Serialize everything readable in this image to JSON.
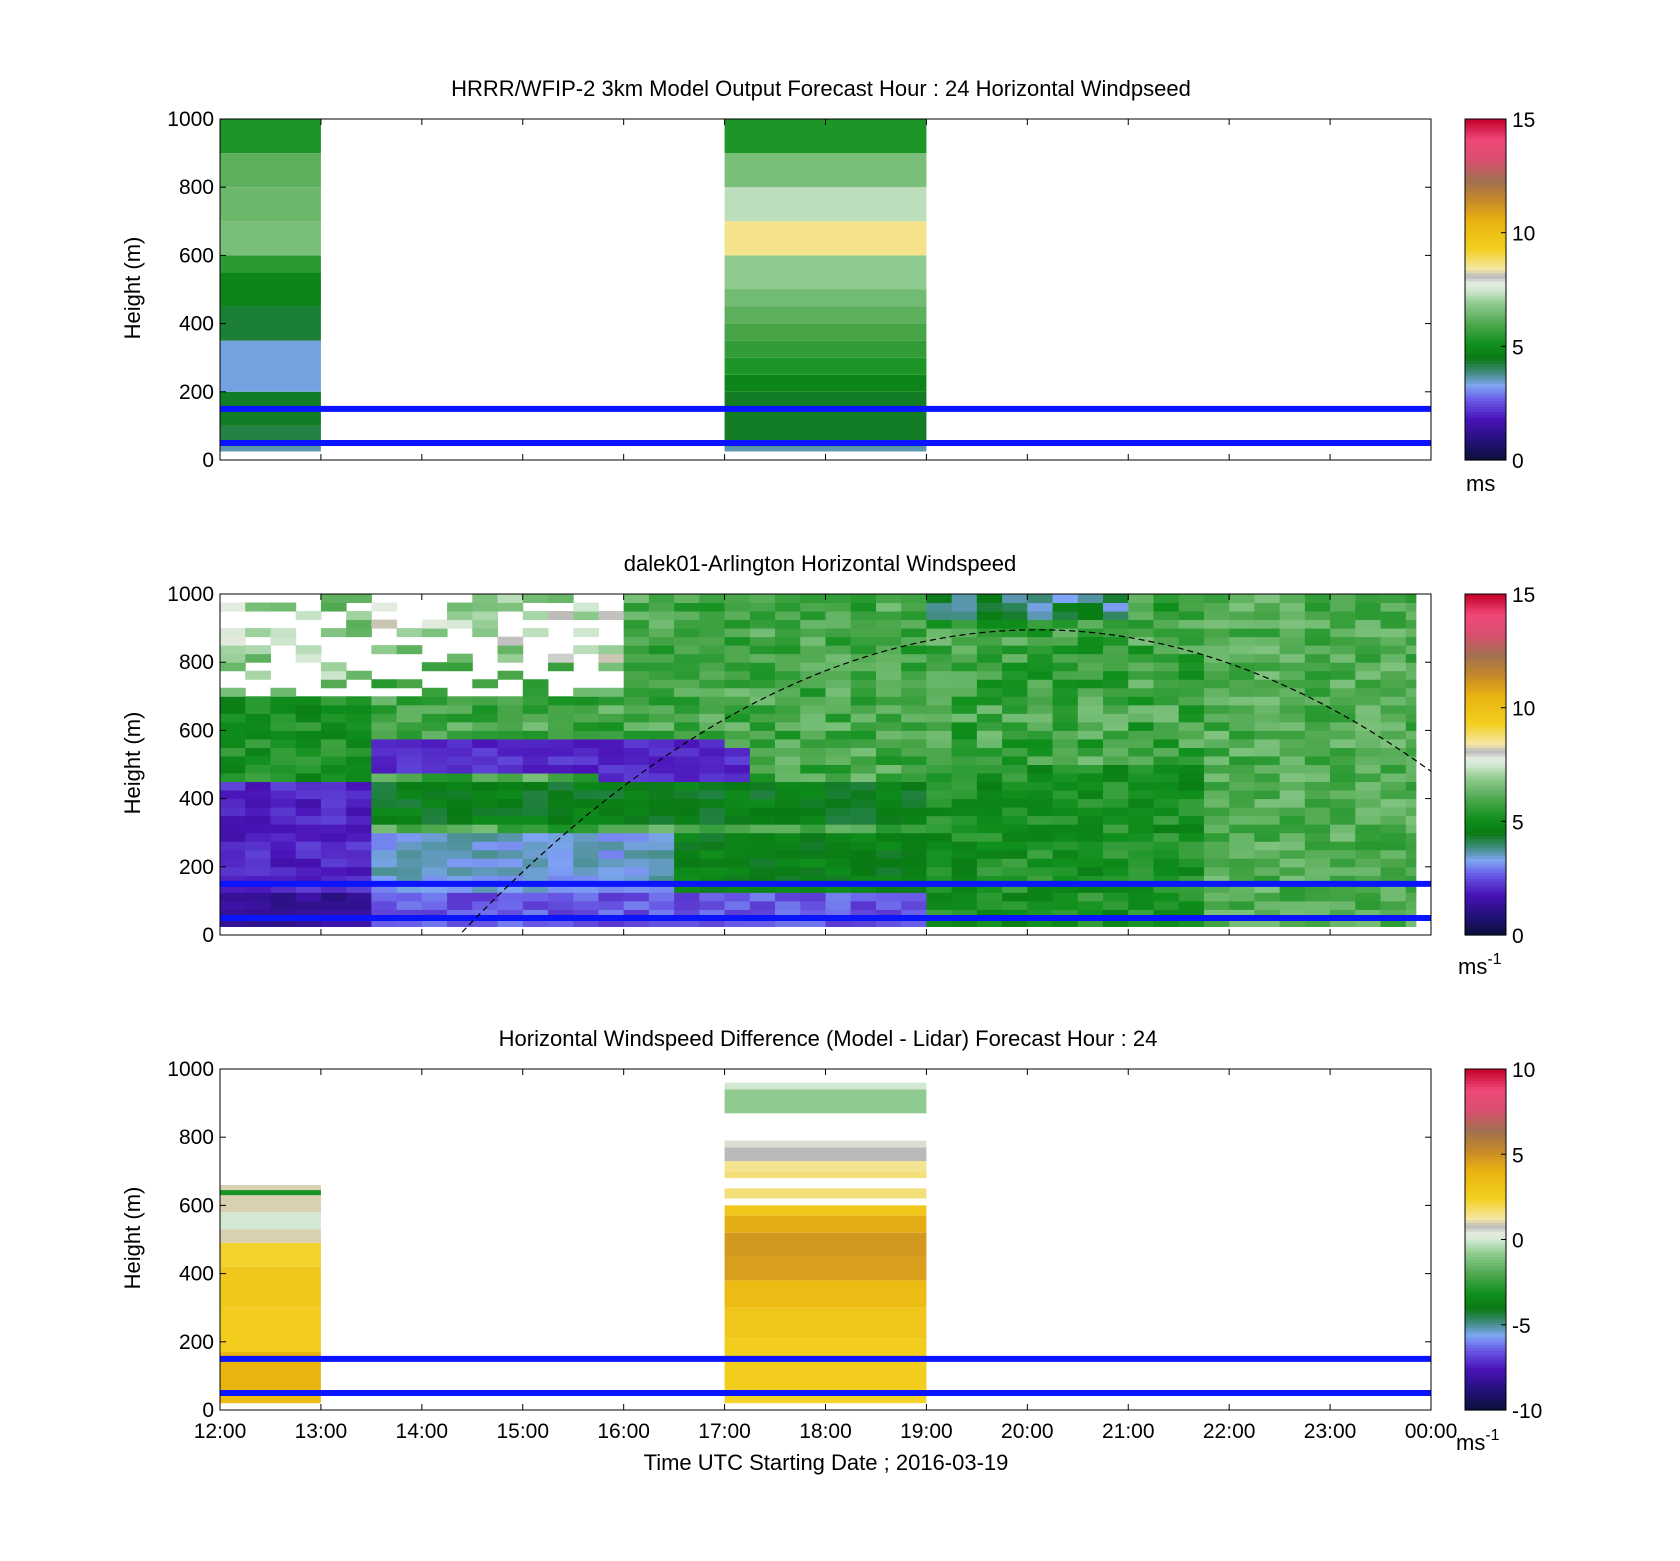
{
  "figure": {
    "xlabel": "Time UTC  Starting Date ; 2016-03-19",
    "x_ticks": [
      "12:00",
      "13:00",
      "14:00",
      "15:00",
      "16:00",
      "17:00",
      "18:00",
      "19:00",
      "20:00",
      "21:00",
      "22:00",
      "23:00",
      "00:00"
    ]
  },
  "chart_data": [
    {
      "type": "heatmap",
      "title": "HRRR/WFIP-2 3km Model Output   Forecast Hour : 24 Horizontal Windpseed",
      "ylabel": "Height (m)",
      "xlim_hours": [
        12,
        24
      ],
      "ylim": [
        0,
        1000
      ],
      "y_ticks": [
        "0",
        "200",
        "400",
        "600",
        "800",
        "1000"
      ],
      "colorbar": {
        "min": 0,
        "max": 15,
        "ticks": [
          "0",
          "5",
          "10",
          "15"
        ],
        "unit": "ms",
        "unit_exp": ""
      },
      "reference_lines_m": [
        50,
        150
      ],
      "columns": [
        {
          "t_start": 12,
          "t_end": 13,
          "layers": [
            {
              "bottom": 25,
              "top": 40,
              "value": 3.6
            },
            {
              "bottom": 40,
              "top": 100,
              "value": 4.2
            },
            {
              "bottom": 100,
              "top": 200,
              "value": 4.4
            },
            {
              "bottom": 200,
              "top": 350,
              "value": 3.4
            },
            {
              "bottom": 350,
              "top": 450,
              "value": 4.3
            },
            {
              "bottom": 450,
              "top": 550,
              "value": 4.8
            },
            {
              "bottom": 550,
              "top": 600,
              "value": 5.5
            },
            {
              "bottom": 600,
              "top": 700,
              "value": 6.6
            },
            {
              "bottom": 700,
              "top": 800,
              "value": 6.4
            },
            {
              "bottom": 800,
              "top": 900,
              "value": 6.2
            },
            {
              "bottom": 900,
              "top": 1000,
              "value": 5.3
            }
          ]
        },
        {
          "t_start": 17,
          "t_end": 19,
          "layers": [
            {
              "bottom": 25,
              "top": 40,
              "value": 3.6
            },
            {
              "bottom": 40,
              "top": 200,
              "value": 4.4
            },
            {
              "bottom": 200,
              "top": 250,
              "value": 4.8
            },
            {
              "bottom": 250,
              "top": 300,
              "value": 5.3
            },
            {
              "bottom": 300,
              "top": 350,
              "value": 5.6
            },
            {
              "bottom": 350,
              "top": 400,
              "value": 5.9
            },
            {
              "bottom": 400,
              "top": 450,
              "value": 6.2
            },
            {
              "bottom": 450,
              "top": 500,
              "value": 6.5
            },
            {
              "bottom": 500,
              "top": 600,
              "value": 6.9
            },
            {
              "bottom": 600,
              "top": 700,
              "value": 8.6
            },
            {
              "bottom": 700,
              "top": 800,
              "value": 7.3
            },
            {
              "bottom": 800,
              "top": 900,
              "value": 6.6
            },
            {
              "bottom": 900,
              "top": 1000,
              "value": 5.3
            }
          ]
        }
      ]
    },
    {
      "type": "heatmap",
      "title": "dalek01-Arlington  Horizontal Windspeed",
      "ylabel": "Height (m)",
      "xlim_hours": [
        12,
        24
      ],
      "ylim": [
        0,
        1000
      ],
      "y_ticks": [
        "0",
        "200",
        "400",
        "600",
        "800",
        "1000"
      ],
      "colorbar": {
        "min": 0,
        "max": 15,
        "ticks": [
          "0",
          "5",
          "10",
          "15"
        ],
        "unit": "ms",
        "unit_exp": "-1"
      },
      "reference_lines_m": [
        50,
        150
      ],
      "time_step_hours": 0.25,
      "data_extent_hours": [
        12,
        23.85
      ],
      "height_step_m": 25,
      "dashed_curve": {
        "peak_hour": 20.1,
        "peak_height_m": 895,
        "height_at_24h_m": 480,
        "visible_from_hour": 14.1
      },
      "field_profiles": [
        {
          "t": 12.0,
          "description": "weak below 450 m (1.5-2.5), green above"
        },
        {
          "t": 13.5,
          "description": "shift to moderate: blue near surface, green jet 300-450 m"
        },
        {
          "t": 15.5,
          "description": "purple band 480-560 m, green 320-420 m, blue 150-300 m"
        },
        {
          "t": 17.5,
          "description": "green core 200-450 m, blue below, light green above"
        },
        {
          "t": 19.5,
          "description": "green 5 m/s bulk, light green aloft"
        },
        {
          "t": 23.0,
          "description": "light green 5.5-6.5 throughout"
        }
      ]
    },
    {
      "type": "heatmap",
      "title": "Horizontal Windspeed Difference (Model - Lidar) Forecast Hour : 24",
      "ylabel": "Height (m)",
      "xlim_hours": [
        12,
        24
      ],
      "ylim": [
        0,
        1000
      ],
      "y_ticks": [
        "0",
        "200",
        "400",
        "600",
        "800",
        "1000"
      ],
      "colorbar": {
        "min": -10,
        "max": 10,
        "ticks": [
          "-10",
          "-5",
          "0",
          "5",
          "10"
        ],
        "unit": "ms",
        "unit_exp": "-1"
      },
      "reference_lines_m": [
        50,
        150
      ],
      "columns": [
        {
          "t_start": 12,
          "t_end": 13,
          "layers": [
            {
              "bottom": 20,
              "top": 60,
              "value": 3.5
            },
            {
              "bottom": 60,
              "top": 170,
              "value": 4.0
            },
            {
              "bottom": 170,
              "top": 300,
              "value": 2.6
            },
            {
              "bottom": 300,
              "top": 420,
              "value": 2.9
            },
            {
              "bottom": 420,
              "top": 490,
              "value": 2.3
            },
            {
              "bottom": 490,
              "top": 530,
              "value": 1.0
            },
            {
              "bottom": 530,
              "top": 580,
              "value": 0.0
            },
            {
              "bottom": 580,
              "top": 630,
              "value": 1.0
            },
            {
              "bottom": 630,
              "top": 645,
              "value": -3.0
            },
            {
              "bottom": 645,
              "top": 660,
              "value": 1.0
            }
          ]
        },
        {
          "t_start": 17,
          "t_end": 19,
          "layers": [
            {
              "bottom": 20,
              "top": 60,
              "value": 2.3
            },
            {
              "bottom": 60,
              "top": 210,
              "value": 2.6
            },
            {
              "bottom": 210,
              "top": 300,
              "value": 3.0
            },
            {
              "bottom": 300,
              "top": 380,
              "value": 3.6
            },
            {
              "bottom": 380,
              "top": 450,
              "value": 4.6
            },
            {
              "bottom": 450,
              "top": 520,
              "value": 4.8
            },
            {
              "bottom": 520,
              "top": 570,
              "value": 4.2
            },
            {
              "bottom": 570,
              "top": 600,
              "value": 3.0
            },
            {
              "bottom": 620,
              "top": 650,
              "value": 1.6
            },
            {
              "bottom": 680,
              "top": 700,
              "value": 1.6
            },
            {
              "bottom": 700,
              "top": 730,
              "value": 1.4
            },
            {
              "bottom": 730,
              "top": 770,
              "value": 0.8
            },
            {
              "bottom": 770,
              "top": 790,
              "value": 0.5
            },
            {
              "bottom": 870,
              "top": 940,
              "value": -0.8
            },
            {
              "bottom": 940,
              "top": 960,
              "value": 0.0
            }
          ]
        }
      ]
    }
  ]
}
